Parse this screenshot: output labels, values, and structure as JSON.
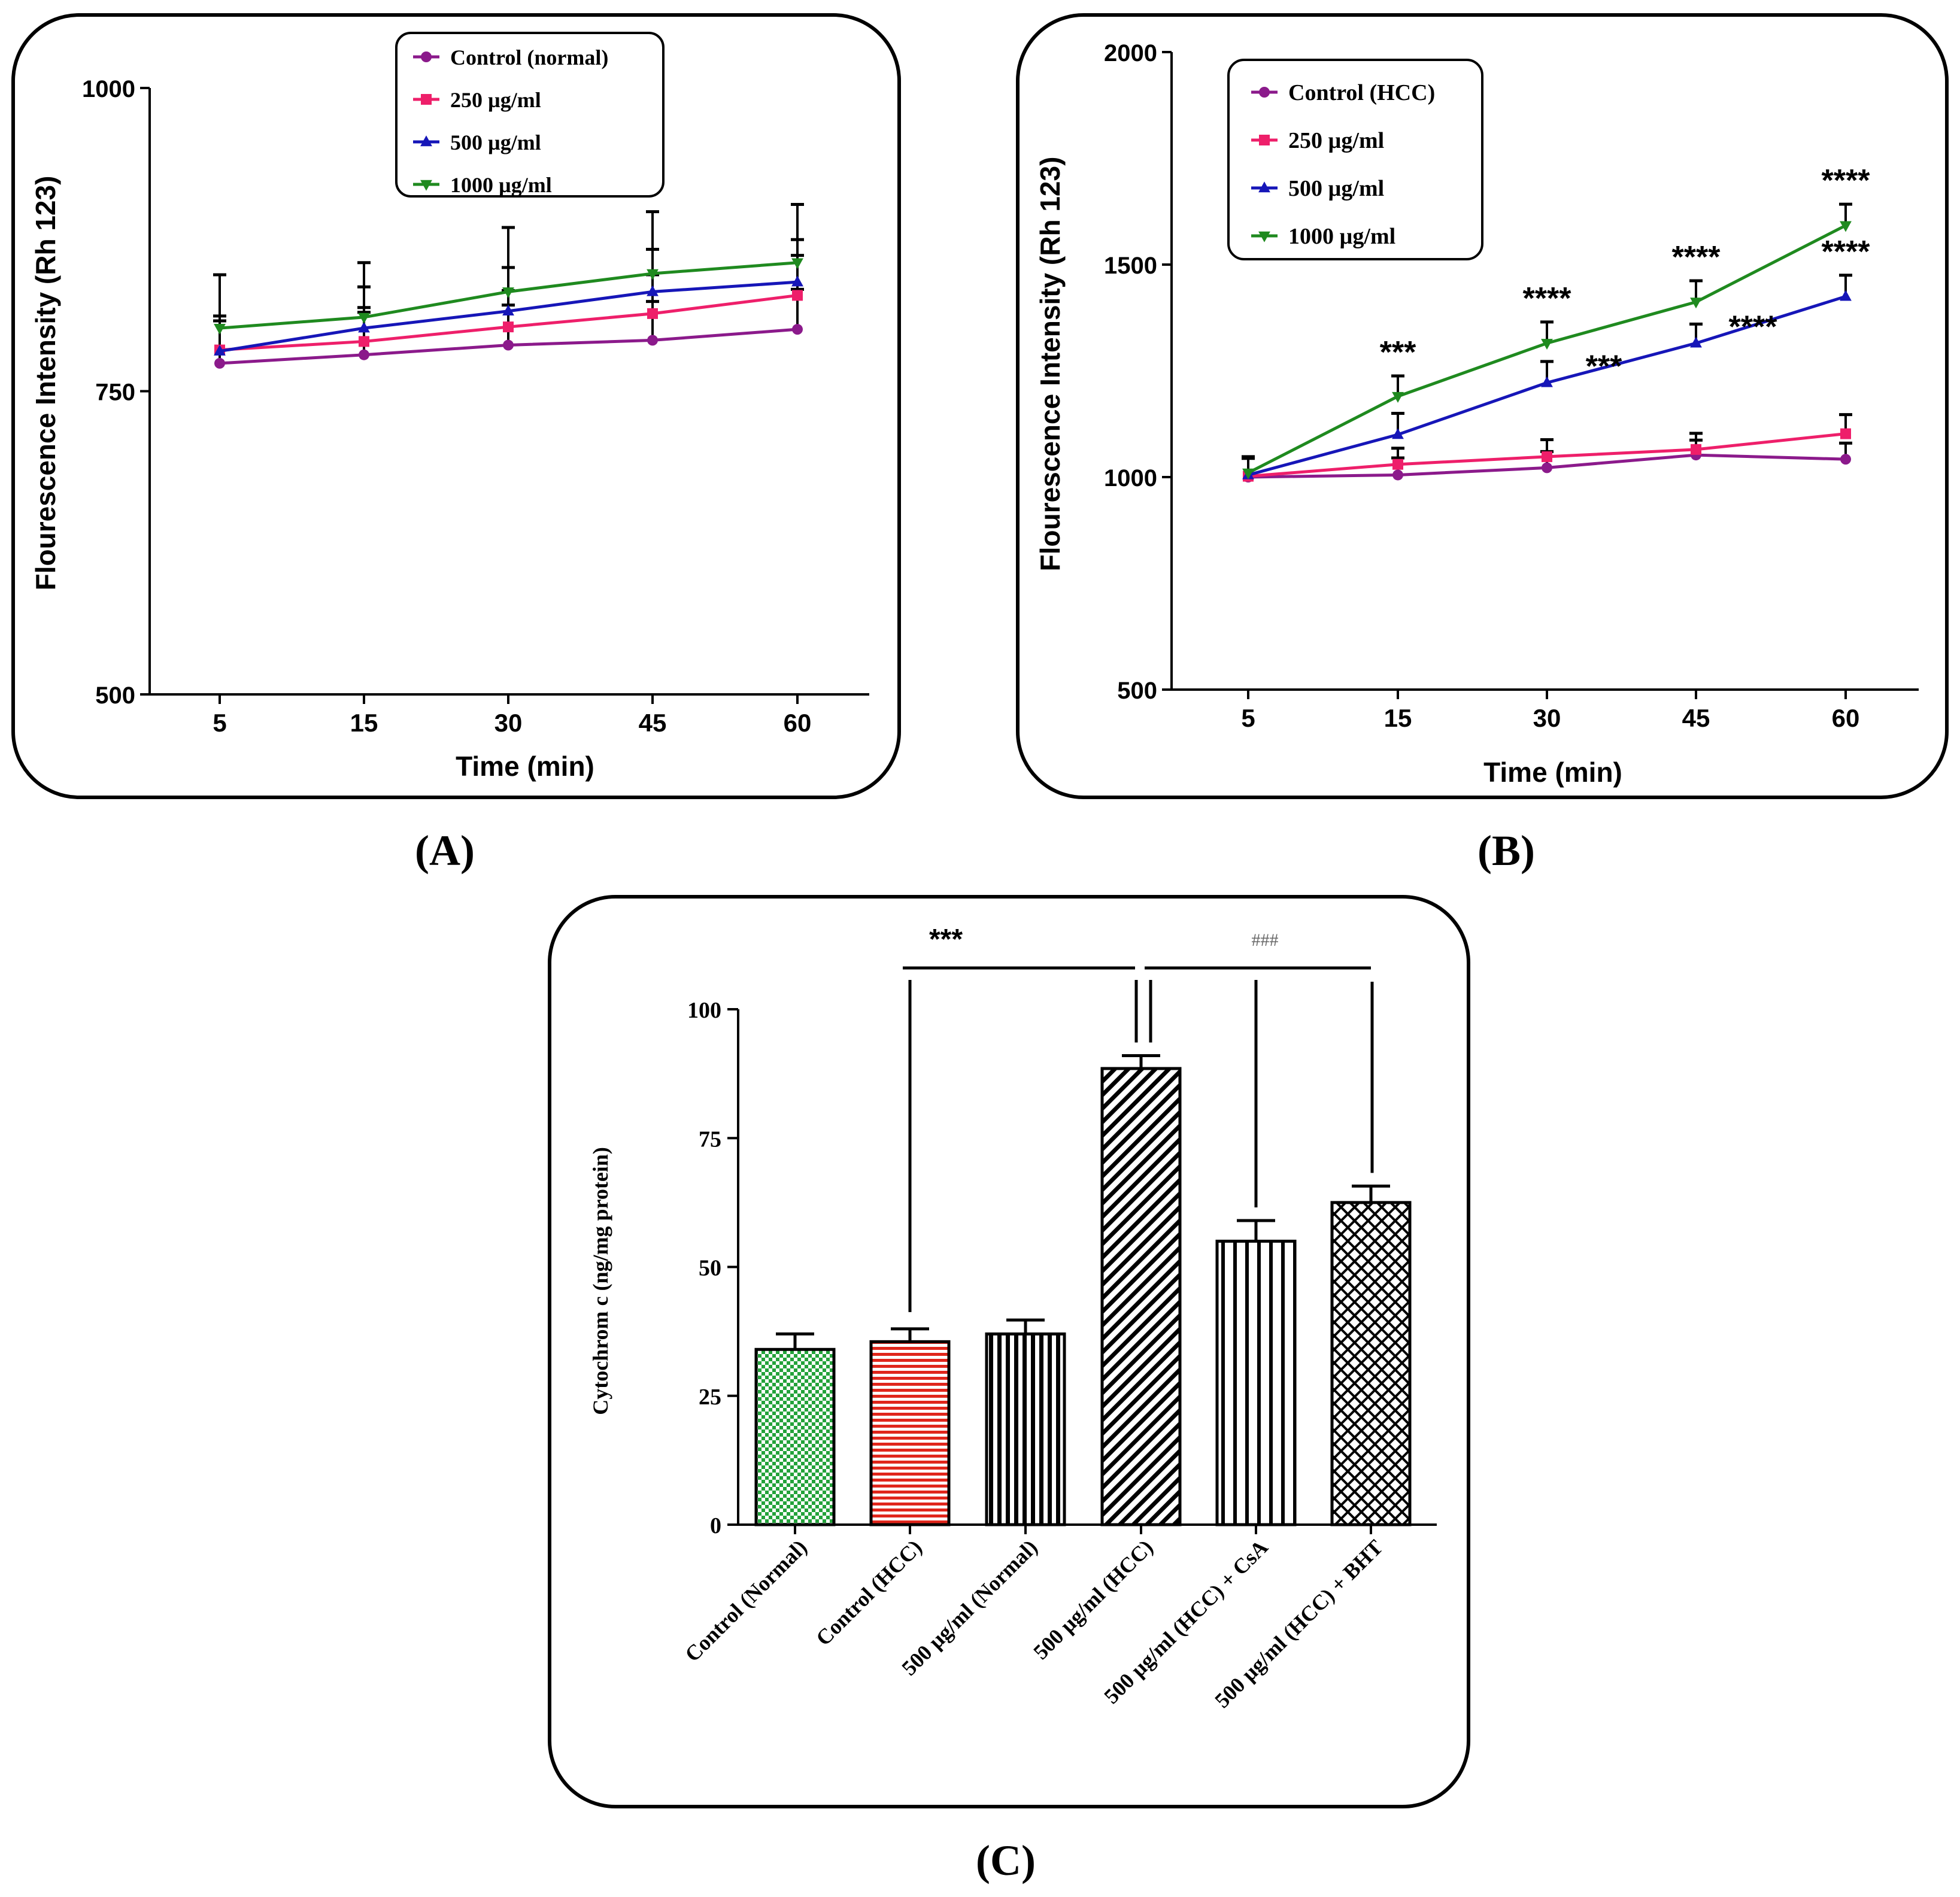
{
  "colors": {
    "purple": "#8b1a8b",
    "pink": "#ee1f6a",
    "blue": "#1616b8",
    "green": "#1f8a1f",
    "red": "#e0261b",
    "greenFill": "#23a23a",
    "black": "#000000"
  },
  "chart_data": [
    {
      "panel": "(A)",
      "type": "line",
      "xlabel": "Time (min)",
      "ylabel": "Flourescence Intensity (Rh 123)",
      "x": [
        5,
        15,
        30,
        45,
        60
      ],
      "ylim": [
        500,
        1000
      ],
      "yticks": [
        500,
        750,
        1000
      ],
      "series": [
        {
          "name": "Control (normal)",
          "color": "#8b1a8b",
          "marker": "circle",
          "values": [
            773,
            780,
            788,
            792,
            801
          ],
          "err": [
            35,
            35,
            33,
            32,
            33
          ]
        },
        {
          "name": "250 µg/ml",
          "color": "#ee1f6a",
          "marker": "square",
          "values": [
            784,
            791,
            803,
            814,
            829
          ],
          "err": [
            28,
            28,
            30,
            32,
            33
          ]
        },
        {
          "name": "500 µg/ml",
          "color": "#1616b8",
          "marker": "triangle-up",
          "values": [
            783,
            802,
            816,
            832,
            840
          ],
          "err": [
            25,
            34,
            36,
            35,
            35
          ]
        },
        {
          "name": "1000 µg/ml",
          "color": "#1f8a1f",
          "marker": "triangle-down",
          "values": [
            802,
            811,
            832,
            847,
            856
          ],
          "err": [
            44,
            45,
            53,
            51,
            48
          ]
        }
      ],
      "legend": "top-center"
    },
    {
      "panel": "(B)",
      "type": "line",
      "xlabel": "Time (min)",
      "ylabel": "Flourescence Intensity (Rh 123)",
      "x": [
        5,
        15,
        30,
        45,
        60
      ],
      "ylim": [
        500,
        2000
      ],
      "yticks": [
        500,
        1000,
        1500,
        2000
      ],
      "series": [
        {
          "name": "Control (HCC)",
          "color": "#8b1a8b",
          "marker": "circle",
          "values": [
            1000,
            1005,
            1022,
            1052,
            1042
          ],
          "err": [
            45,
            40,
            38,
            35,
            38
          ]
        },
        {
          "name": "250 µg/ml",
          "color": "#ee1f6a",
          "marker": "square",
          "values": [
            1002,
            1030,
            1048,
            1065,
            1102
          ],
          "err": [
            42,
            38,
            40,
            38,
            45
          ]
        },
        {
          "name": "500 µg/ml",
          "color": "#1616b8",
          "marker": "triangle-up",
          "values": [
            1005,
            1100,
            1222,
            1315,
            1425
          ],
          "err": [
            40,
            50,
            50,
            45,
            50
          ]
        },
        {
          "name": "1000 µg/ml",
          "color": "#1f8a1f",
          "marker": "triangle-down",
          "values": [
            1010,
            1190,
            1315,
            1412,
            1592
          ],
          "err": [
            38,
            48,
            50,
            50,
            50
          ]
        }
      ],
      "annotations": [
        {
          "x": 15,
          "series": "1000 µg/ml",
          "text": "***"
        },
        {
          "x": 30,
          "series": "1000 µg/ml",
          "text": "****"
        },
        {
          "x": 45,
          "series": "1000 µg/ml",
          "text": "****"
        },
        {
          "x": 60,
          "series": "1000 µg/ml",
          "text": "****"
        },
        {
          "x": 30,
          "series": "500 µg/ml",
          "text": "***"
        },
        {
          "x": 45,
          "series": "500 µg/ml",
          "text": "****"
        },
        {
          "x": 60,
          "series": "500 µg/ml",
          "text": "****"
        }
      ],
      "legend": "top-left"
    },
    {
      "panel": "(C)",
      "type": "bar",
      "ylabel": "Cytochrom c (ng/mg protein)",
      "ylim": [
        0,
        100
      ],
      "yticks": [
        0,
        25,
        50,
        75,
        100
      ],
      "categories": [
        "Control (Normal)",
        "Control (HCC)",
        "500 µg/ml (Normal)",
        "500 µg/ml (HCC)",
        "500 µg/ml (HCC) + CsA",
        "500 µg/ml (HCC) + BHT"
      ],
      "values": [
        34,
        35.5,
        37,
        88.5,
        55,
        62.5
      ],
      "err": [
        3,
        2.5,
        2.7,
        2.5,
        4,
        3.2
      ],
      "fills": [
        "green-check",
        "red-hlines",
        "black-vlines",
        "black-diagonal",
        "black-vlines-sparse",
        "black-crosshatch"
      ],
      "significance": [
        {
          "between": [
            "Control (HCC)",
            "500 µg/ml (HCC)"
          ],
          "text": "***"
        },
        {
          "between": [
            "500 µg/ml (HCC)",
            [
              "500 µg/ml (HCC) + CsA",
              "500 µg/ml (HCC) + BHT"
            ]
          ],
          "text": "###"
        }
      ]
    }
  ],
  "panel_labels": [
    "(A)",
    "(B)",
    "(C)"
  ]
}
